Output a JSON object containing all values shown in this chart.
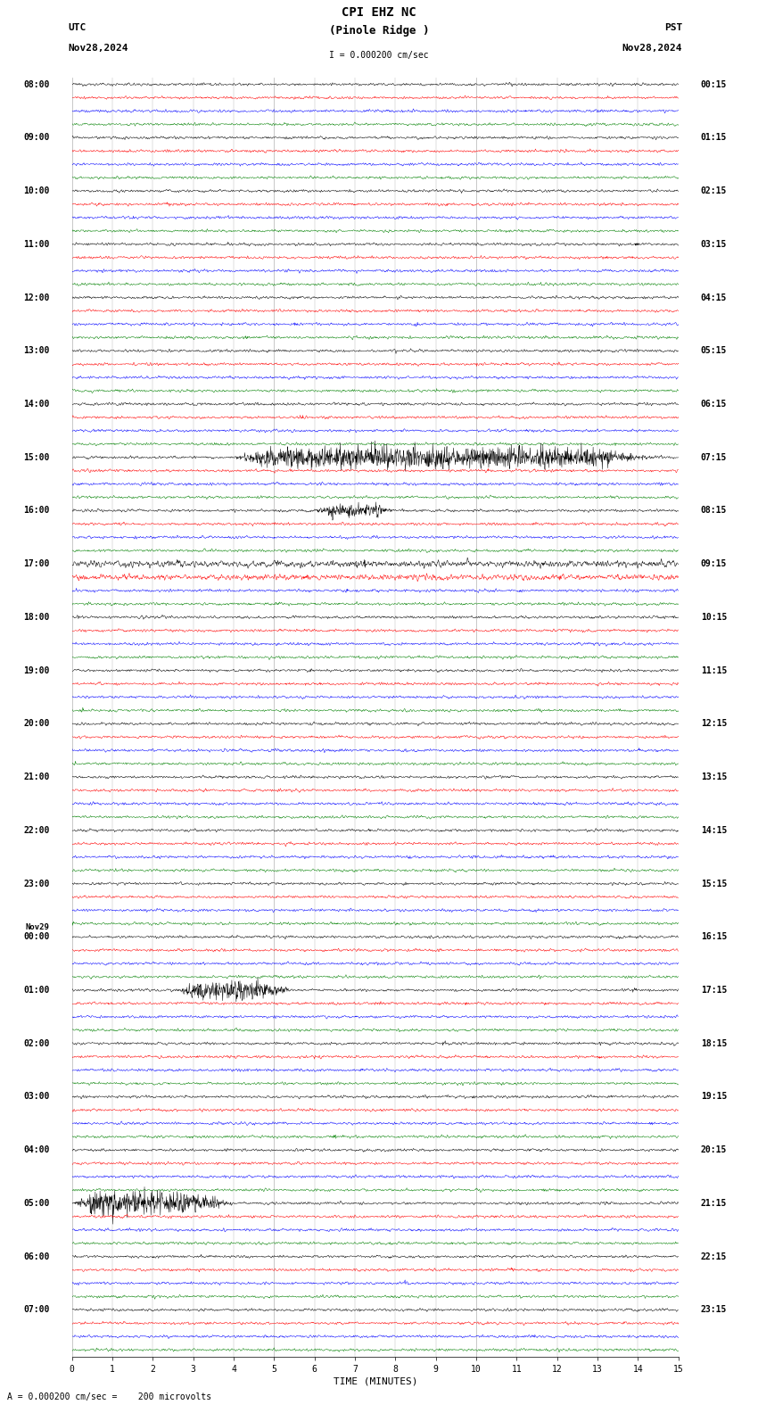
{
  "title_line1": "CPI EHZ NC",
  "title_line2": "(Pinole Ridge )",
  "scale_text": "I = 0.000200 cm/sec",
  "bottom_scale_text": "= 0.000200 cm/sec =    200 microvolts",
  "utc_label": "UTC",
  "pst_label": "PST",
  "date_left": "Nov28,2024",
  "date_right": "Nov28,2024",
  "xlabel": "TIME (MINUTES)",
  "n_rows": 96,
  "n_hours": 24,
  "traces_per_hour": 4,
  "xmin": 0,
  "xmax": 15,
  "bg_color": "#ffffff",
  "trace_colors": [
    "black",
    "red",
    "blue",
    "green"
  ],
  "fig_width": 8.5,
  "fig_height": 15.84,
  "title_fontsize": 9,
  "label_fontsize": 7,
  "tick_fontsize": 7
}
